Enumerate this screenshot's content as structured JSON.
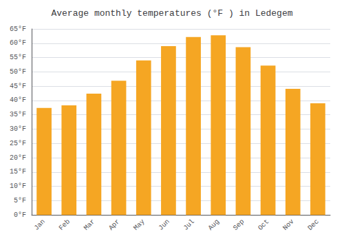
{
  "chart_data": {
    "type": "bar",
    "title": "Average monthly temperatures (°F ) in Ledegem",
    "categories": [
      "Jan",
      "Feb",
      "Mar",
      "Apr",
      "May",
      "Jun",
      "Jul",
      "Aug",
      "Sep",
      "Oct",
      "Nov",
      "Dec"
    ],
    "values": [
      37.4,
      38.3,
      42.4,
      46.9,
      54.0,
      59.0,
      62.2,
      62.8,
      58.6,
      52.2,
      44.1,
      39.0
    ],
    "color": "#F5A623",
    "ylim": [
      0,
      65
    ],
    "yticks": [
      {
        "value": 0,
        "label": "0°F"
      },
      {
        "value": 5,
        "label": "5°F"
      },
      {
        "value": 10,
        "label": "10°F"
      },
      {
        "value": 15,
        "label": "15°F"
      },
      {
        "value": 20,
        "label": "20°F"
      },
      {
        "value": 25,
        "label": "25°F"
      },
      {
        "value": 30,
        "label": "30°F"
      },
      {
        "value": 35,
        "label": "35°F"
      },
      {
        "value": 40,
        "label": "40°F"
      },
      {
        "value": 45,
        "label": "45°F"
      },
      {
        "value": 50,
        "label": "50°F"
      },
      {
        "value": 55,
        "label": "55°F"
      },
      {
        "value": 60,
        "label": "60°F"
      },
      {
        "value": 65,
        "label": "65°F"
      }
    ],
    "grid": true
  }
}
